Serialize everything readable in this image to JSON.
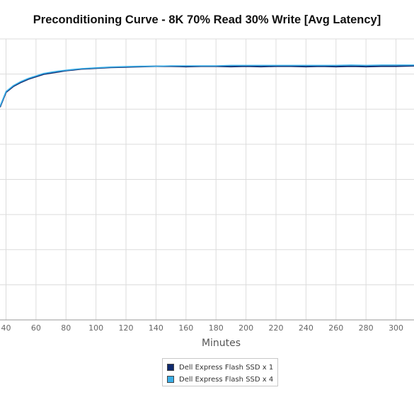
{
  "chart_data": {
    "type": "line",
    "title": "Preconditioning Curve - 8K 70% Read 30% Write [Avg Latency]",
    "xlabel": "Minutes",
    "ylabel": "",
    "x_ticks": [
      40,
      60,
      80,
      100,
      120,
      140,
      160,
      180,
      200,
      220,
      240,
      260,
      280,
      300
    ],
    "xlim": [
      36,
      312
    ],
    "ylim": [
      0,
      7
    ],
    "grid": true,
    "legend_position": "bottom",
    "series": [
      {
        "name": "Dell Express Flash SSD x 1",
        "color": "#0f2a6e",
        "x": [
          36,
          40,
          45,
          50,
          55,
          60,
          65,
          70,
          75,
          80,
          85,
          90,
          95,
          100,
          110,
          120,
          130,
          140,
          150,
          160,
          170,
          180,
          190,
          200,
          210,
          220,
          230,
          240,
          250,
          260,
          270,
          280,
          290,
          300,
          312
        ],
        "y": [
          5.3,
          5.67,
          5.82,
          5.92,
          6.0,
          6.06,
          6.12,
          6.15,
          6.18,
          6.21,
          6.23,
          6.25,
          6.26,
          6.27,
          6.29,
          6.3,
          6.31,
          6.32,
          6.32,
          6.31,
          6.32,
          6.32,
          6.31,
          6.32,
          6.31,
          6.32,
          6.32,
          6.31,
          6.32,
          6.31,
          6.32,
          6.31,
          6.32,
          6.32,
          6.33
        ]
      },
      {
        "name": "Dell Express Flash SSD x 4",
        "color": "#3aaee8",
        "x": [
          36,
          40,
          45,
          50,
          55,
          60,
          65,
          70,
          75,
          80,
          85,
          90,
          95,
          100,
          110,
          120,
          130,
          140,
          150,
          160,
          170,
          180,
          190,
          200,
          210,
          220,
          230,
          240,
          250,
          260,
          270,
          280,
          290,
          300,
          312
        ],
        "y": [
          5.32,
          5.69,
          5.84,
          5.94,
          6.02,
          6.08,
          6.14,
          6.17,
          6.2,
          6.22,
          6.24,
          6.26,
          6.27,
          6.28,
          6.3,
          6.31,
          6.32,
          6.32,
          6.33,
          6.33,
          6.33,
          6.33,
          6.34,
          6.34,
          6.34,
          6.34,
          6.34,
          6.34,
          6.34,
          6.34,
          6.35,
          6.34,
          6.35,
          6.35,
          6.35
        ]
      }
    ]
  }
}
